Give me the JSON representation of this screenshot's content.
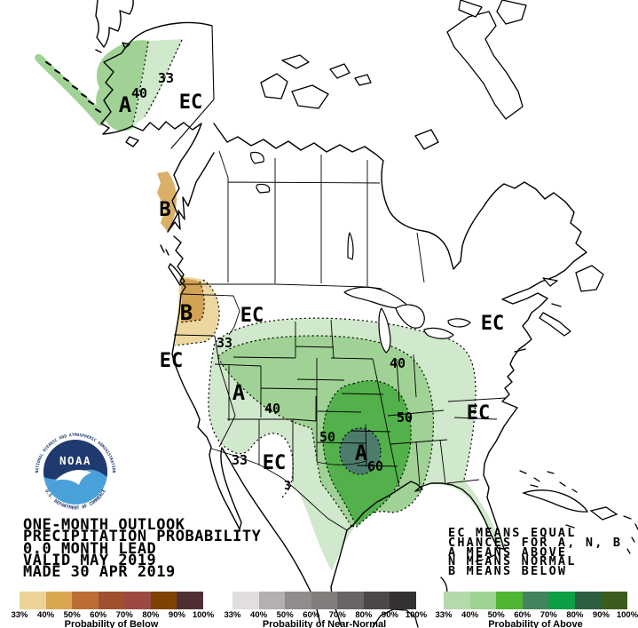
{
  "title_block": {
    "line1": "ONE-MONTH OUTLOOK",
    "line2": "PRECIPITATION PROBABILITY",
    "line3": "0.0 MONTH LEAD",
    "line4": "VALID MAY 2019",
    "line5": "MADE 30 APR 2019"
  },
  "ec_legend": {
    "line1": "EC MEANS EQUAL",
    "line2": "CHANCES FOR A, N, B",
    "line3": "A MEANS ABOVE",
    "line4": "N MEANS NORMAL",
    "line5": "B MEANS BELOW"
  },
  "noaa_logo": {
    "acronym": "NOAA",
    "top_text": "NATIONAL OCEANIC AND ATMOSPHERIC ADMINISTRATION",
    "bottom_text": "U.S. DEPARTMENT OF COMMERCE",
    "navy": "#1e3a6e",
    "sky": "#4aa0d8"
  },
  "map_labels": [
    "A",
    "40",
    "33",
    "EC",
    "B",
    "B",
    "EC",
    "33",
    "EC",
    "A",
    "40",
    "40",
    "50",
    "50",
    "A",
    "60",
    "33",
    "EC",
    "3",
    "EC",
    "EC"
  ],
  "map_colors": {
    "above_33": "#d0e8cb",
    "above_40": "#a0d295",
    "above_50": "#52b14a",
    "above_60": "#4c7d6c",
    "below_33": "#ecd7a0",
    "below_40": "#d3a355",
    "below_ak": "#d9b066"
  },
  "colorbars": [
    {
      "caption": "Probability of Below",
      "ticks": [
        "33%",
        "40%",
        "50%",
        "60%",
        "70%",
        "80%",
        "90%",
        "100%"
      ],
      "colors": [
        "#eed398",
        "#d9a84e",
        "#bc6e35",
        "#a0502f",
        "#9c4a41",
        "#7f4203",
        "#502f33"
      ]
    },
    {
      "caption": "Probability of Near-Normal",
      "ticks": [
        "33%",
        "40%",
        "50%",
        "60%",
        "70%",
        "80%",
        "90%",
        "100%"
      ],
      "colors": [
        "#e2dedd",
        "#b4b0af",
        "#908c8b",
        "#827e7d",
        "#686564",
        "#4b4847",
        "#343231"
      ]
    },
    {
      "caption": "Probability of Above",
      "ticks": [
        "33%",
        "40%",
        "50%",
        "60%",
        "70%",
        "80%",
        "90%",
        "100%"
      ],
      "colors": [
        "#b5d9ab",
        "#9fd392",
        "#51b534",
        "#42845c",
        "#0e9e45",
        "#2c5e41",
        "#3b5c1d"
      ]
    }
  ]
}
